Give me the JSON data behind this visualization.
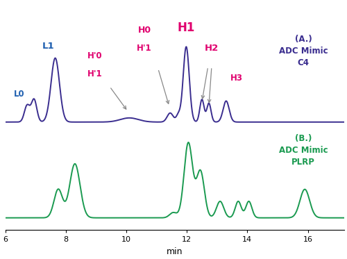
{
  "xlabel": "min",
  "xmin": 6,
  "xmax": 17.2,
  "label_A": "(A.)\nADC Mimic\nC4",
  "label_B": "(B.)\nADC Mimic\nPLRP",
  "color_C4": "#3a2d8f",
  "color_PLRP": "#1a9a50",
  "color_pink": "#e0006e",
  "color_blue_label": "#2060b0",
  "color_gray_arrow": "#888888"
}
